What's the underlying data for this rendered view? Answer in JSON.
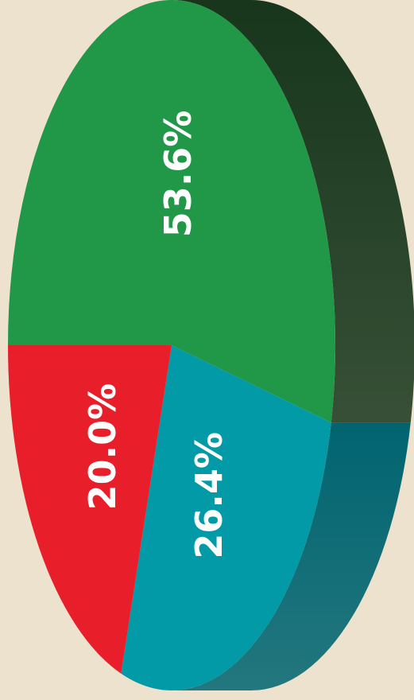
{
  "chart_data": {
    "type": "pie3d",
    "values": [
      53.6,
      26.4,
      20.0
    ],
    "value_labels": [
      "53.6%",
      "26.4%",
      "20.0%"
    ],
    "colors": [
      "#219848",
      "#029aa6",
      "#e81e2a"
    ],
    "side_colors": [
      "#17361c",
      "#006470",
      "#a0141c"
    ]
  }
}
